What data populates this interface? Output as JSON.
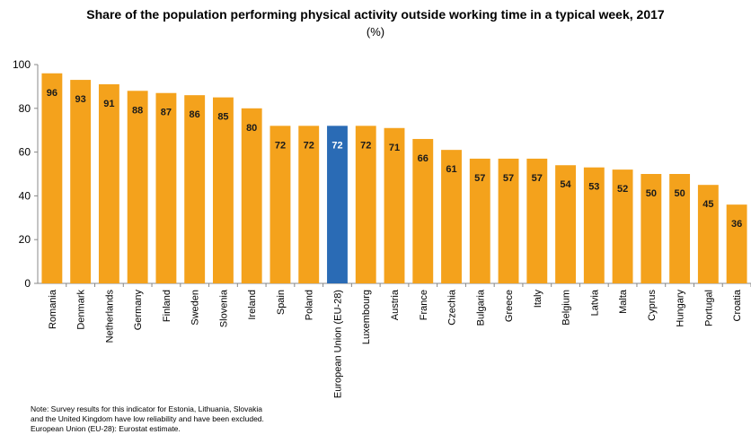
{
  "title": "Share of the population performing physical activity outside working time in a typical week, 2017",
  "subtitle": "(%)",
  "colors": {
    "default_bar": "#F4A21C",
    "highlight_bar": "#2A6BB5",
    "value_dark": "#1a1a1a",
    "value_light": "#ffffff"
  },
  "chart_data": {
    "type": "bar",
    "title": "Share of the population performing physical activity outside working time in a typical week, 2017",
    "subtitle": "(%)",
    "categories": [
      "Romania",
      "Denmark",
      "Netherlands",
      "Germany",
      "Finland",
      "Sweden",
      "Slovenia",
      "Ireland",
      "Spain",
      "Poland",
      "European Union (EU-28)",
      "Luxembourg",
      "Austria",
      "France",
      "Czechia",
      "Bulgaria",
      "Greece",
      "Italy",
      "Belgium",
      "Latvia",
      "Malta",
      "Cyprus",
      "Hungary",
      "Portugal",
      "Croatia"
    ],
    "values": [
      96,
      93,
      91,
      88,
      87,
      86,
      85,
      80,
      72,
      72,
      72,
      72,
      71,
      66,
      61,
      57,
      57,
      57,
      54,
      53,
      52,
      50,
      50,
      45,
      36
    ],
    "highlight": "European Union (EU-28)",
    "ylim": [
      0,
      100
    ],
    "yticks": [
      0,
      20,
      40,
      60,
      80,
      100
    ],
    "xlabel": "",
    "ylabel": "",
    "grid": false
  },
  "notes": [
    "Note: Survey results for this indicator for Estonia, Lithuania, Slovakia",
    "and the United Kingdom have low reliability and have been excluded.",
    "European Union (EU-28): Eurostat estimate."
  ]
}
